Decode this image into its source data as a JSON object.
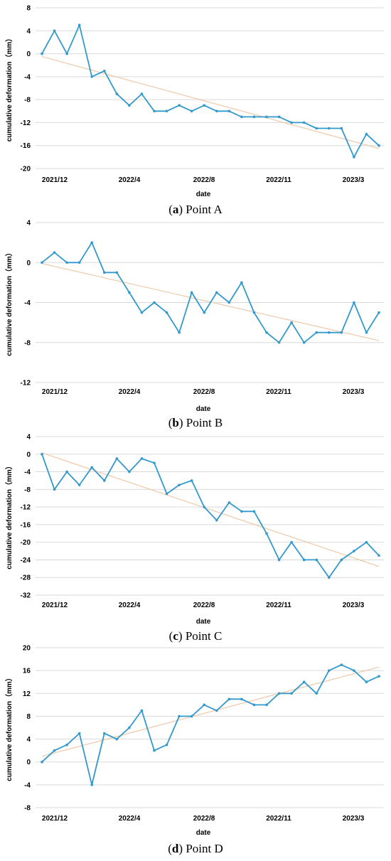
{
  "chart_data": [
    {
      "type": "line",
      "caption_letter": "a",
      "caption_text": "Point A",
      "xlabel": "date",
      "ylabel": "cumulative deformation（mm）",
      "x_tick_labels": [
        "2021/12",
        "2022/4",
        "2022/8",
        "2022/11",
        "2023/3"
      ],
      "ylim": [
        -20,
        8
      ],
      "y_ticks": [
        8,
        4,
        0,
        -4,
        -8,
        -12,
        -16,
        -20
      ],
      "grid": true,
      "series": [
        {
          "values": [
            0,
            4,
            0,
            5,
            -4,
            -3,
            -7,
            -9,
            -7,
            -10,
            -10,
            -9,
            -10,
            -9,
            -10,
            -10,
            -11,
            -11,
            -11,
            -11,
            -12,
            -12,
            -13,
            -13,
            -13,
            -18,
            -14,
            -16
          ],
          "color": "#3399cc"
        }
      ],
      "trendline": {
        "start": -0.5,
        "end": -16.5,
        "color": "#f0c8a8"
      }
    },
    {
      "type": "line",
      "caption_letter": "b",
      "caption_text": "Point B",
      "xlabel": "date",
      "ylabel": "cumulative deformation（mm）",
      "x_tick_labels": [
        "2021/12",
        "2022/4",
        "2022/8",
        "2022/11",
        "2023/3"
      ],
      "ylim": [
        -12,
        4
      ],
      "y_ticks": [
        4,
        0,
        -4,
        -8,
        -12
      ],
      "grid": true,
      "series": [
        {
          "values": [
            0,
            1,
            0,
            0,
            2,
            -1,
            -1,
            -3,
            -5,
            -4,
            -5,
            -7,
            -3,
            -5,
            -3,
            -4,
            -2,
            -5,
            -7,
            -8,
            -6,
            -8,
            -7,
            -7,
            -7,
            -4,
            -7,
            -5
          ],
          "color": "#3399cc"
        }
      ],
      "trendline": {
        "start": -0.1,
        "end": -7.8,
        "color": "#f0c8a8"
      }
    },
    {
      "type": "line",
      "caption_letter": "c",
      "caption_text": "Point C",
      "xlabel": "date",
      "ylabel": "cumulative deformation（mm）",
      "x_tick_labels": [
        "2021/12",
        "2022/4",
        "2022/8",
        "2022/11",
        "2023/3"
      ],
      "ylim": [
        -32,
        4
      ],
      "y_ticks": [
        4,
        0,
        -4,
        -8,
        -12,
        -16,
        -20,
        -24,
        -28,
        -32
      ],
      "grid": true,
      "series": [
        {
          "values": [
            0,
            -8,
            -4,
            -7,
            -3,
            -6,
            -1,
            -4,
            -1,
            -2,
            -9,
            -7,
            -6,
            -12,
            -15,
            -11,
            -13,
            -13,
            -18,
            -24,
            -20,
            -24,
            -24,
            -28,
            -24,
            -22,
            -20,
            -23
          ],
          "color": "#3399cc"
        }
      ],
      "trendline": {
        "start": 0.3,
        "end": -25.5,
        "color": "#f0c8a8"
      }
    },
    {
      "type": "line",
      "caption_letter": "d",
      "caption_text": "Point D",
      "xlabel": "date",
      "ylabel": "cumulative deformation（mm）",
      "x_tick_labels": [
        "2021/12",
        "2022/4",
        "2022/8",
        "2022/11",
        "2023/3"
      ],
      "ylim": [
        -8,
        20
      ],
      "y_ticks": [
        20,
        16,
        12,
        8,
        4,
        0,
        -4,
        -8
      ],
      "grid": true,
      "series": [
        {
          "values": [
            0,
            2,
            3,
            5,
            -4,
            5,
            4,
            6,
            9,
            2,
            3,
            8,
            8,
            10,
            9,
            11,
            11,
            10,
            10,
            12,
            12,
            14,
            12,
            16,
            17,
            16,
            14,
            15
          ],
          "color": "#3399cc"
        }
      ],
      "trendline": {
        "start": 1.0,
        "end": 16.6,
        "color": "#f0c8a8"
      }
    }
  ]
}
